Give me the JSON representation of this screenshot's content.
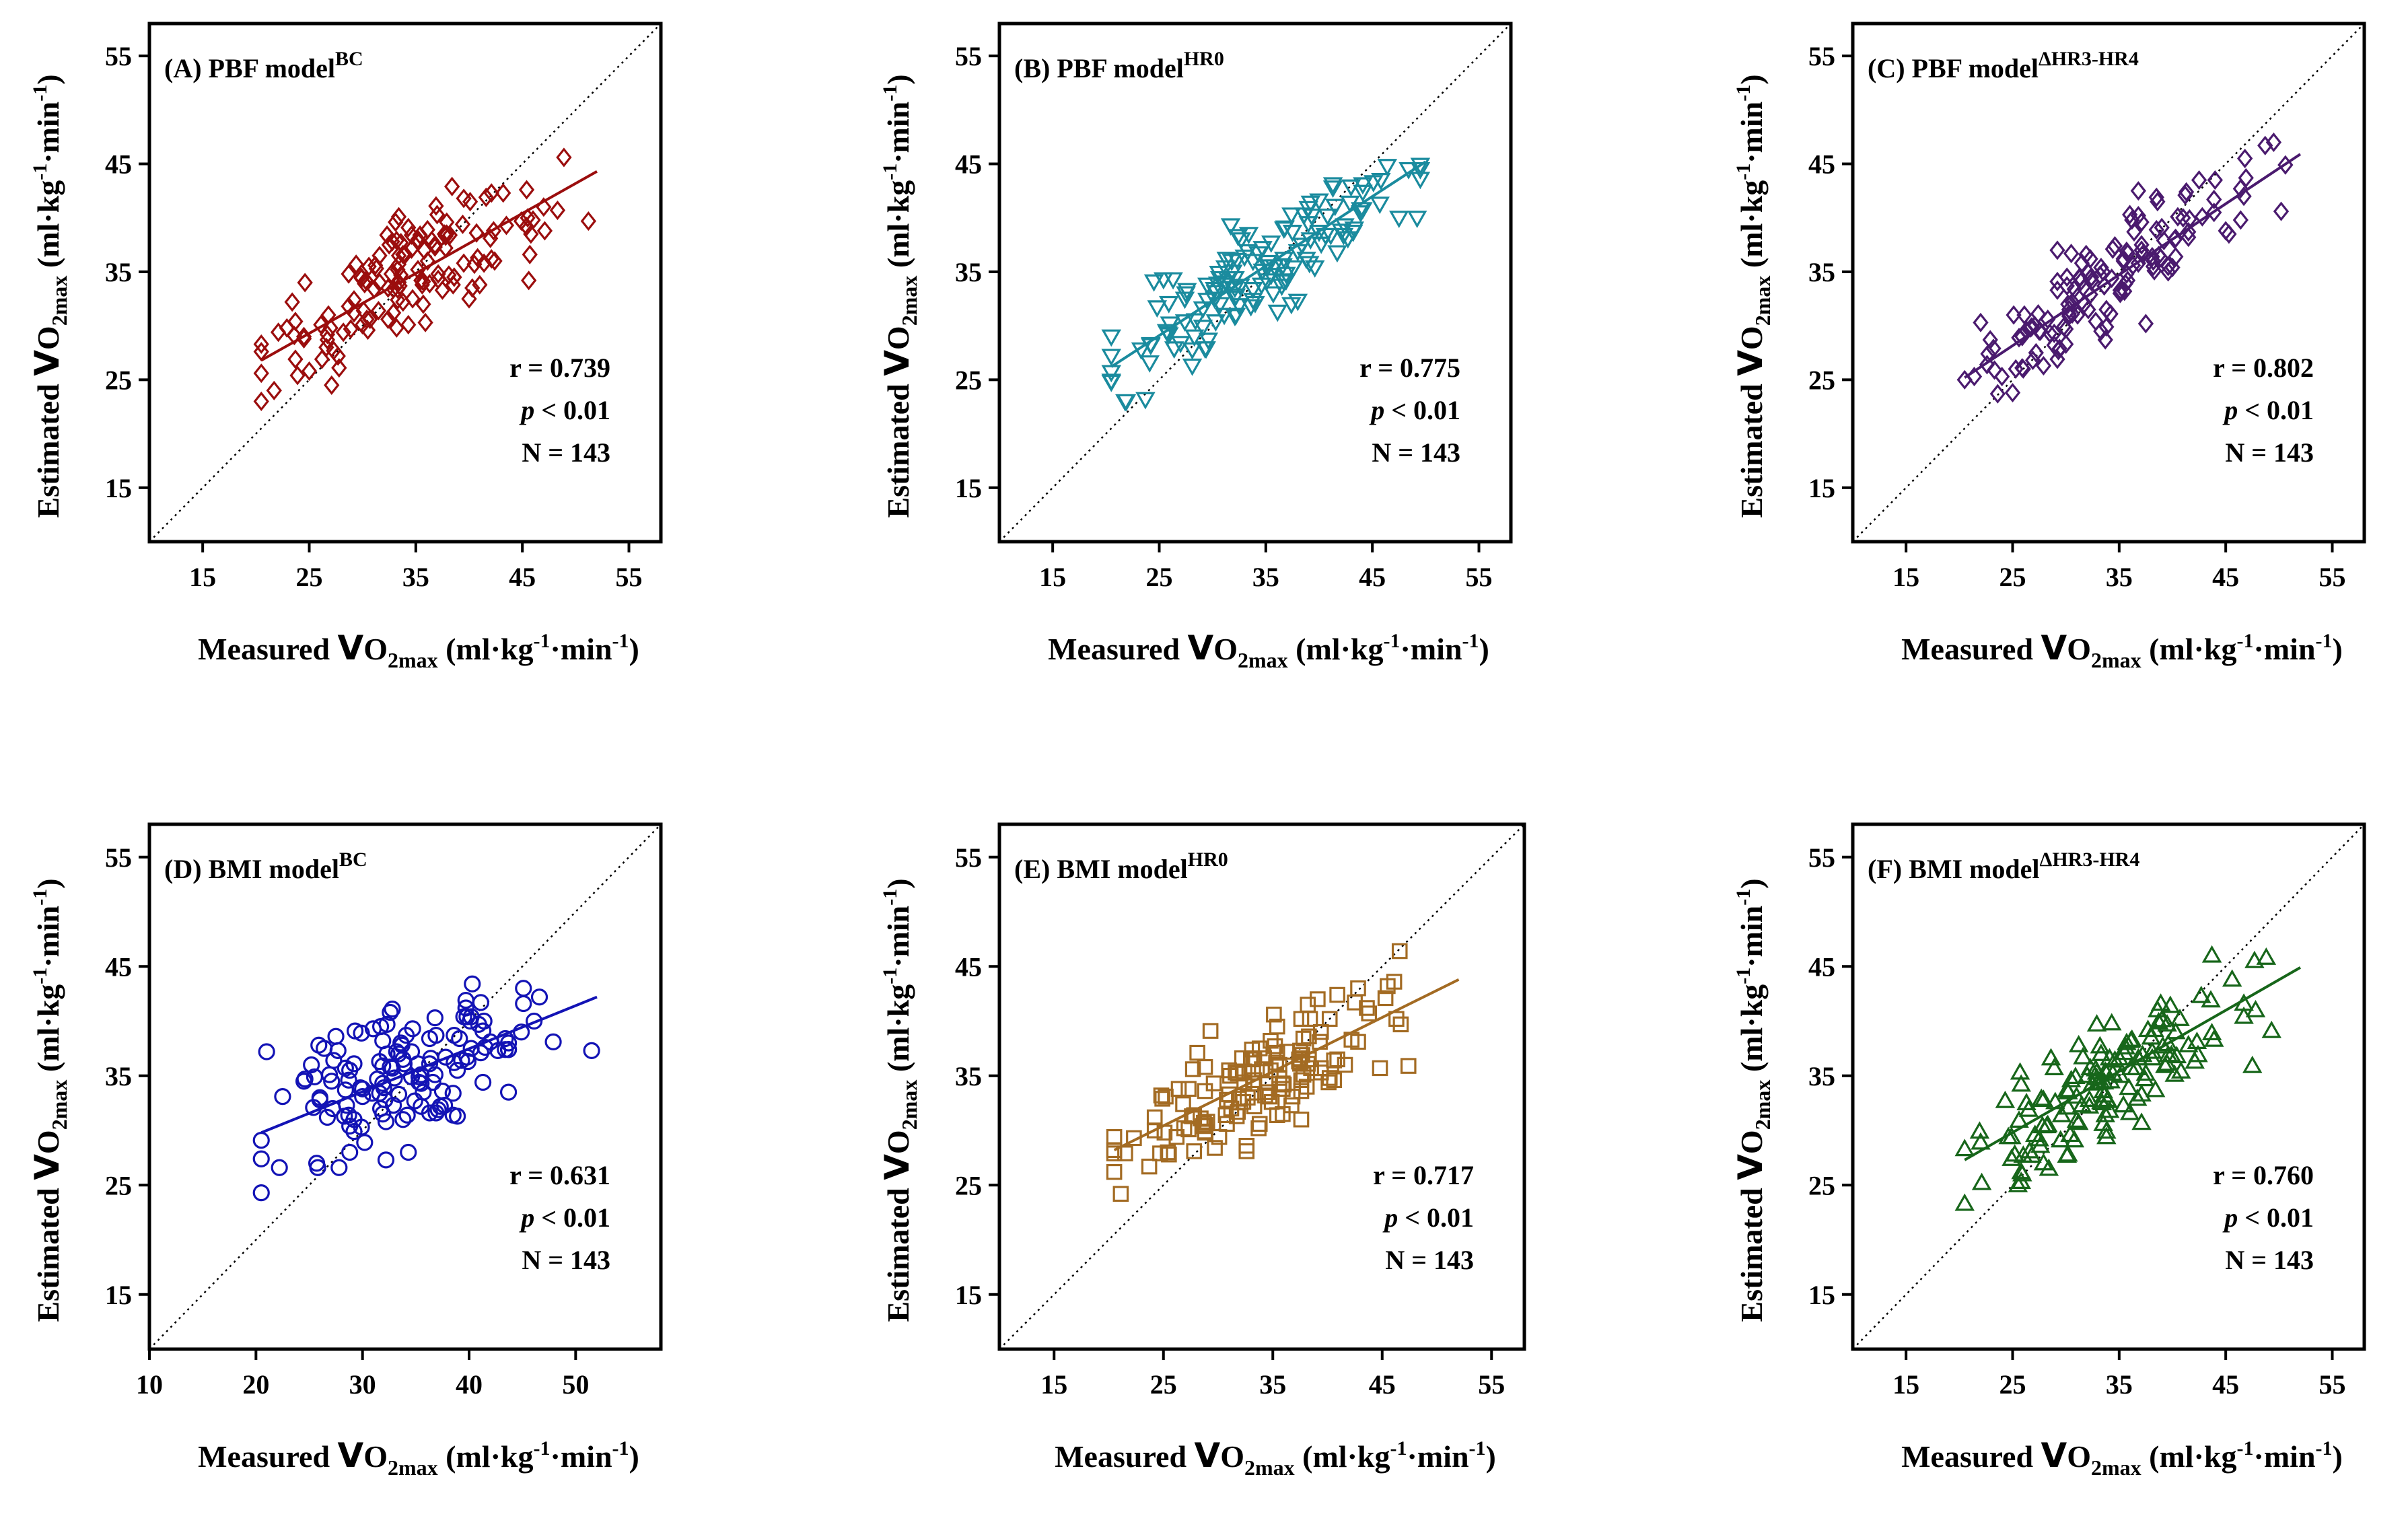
{
  "chart_data": [
    {
      "type": "scatter",
      "panel": "A",
      "title": {
        "main": "(A) PBF model",
        "sup": "BC"
      },
      "color": "#9b0d0d",
      "marker": "diamond",
      "xlabel": {
        "pre": "Measured ",
        "v": "V",
        "sub": "2max",
        "o": "O",
        "unit_pre": "(ml·kg",
        "exp1": "-1",
        "unit_mid": "·min",
        "exp2": "-1",
        "unit_post": ")"
      },
      "ylabel": {
        "pre": "Estimated ",
        "v": "V",
        "o": "O",
        "sub": "2max",
        "unit_pre": "(ml·kg",
        "exp1": "-1",
        "unit_mid": "·min",
        "exp2": "-1",
        "unit_post": ")"
      },
      "xlim": [
        10,
        58
      ],
      "ylim": [
        10,
        58
      ],
      "xticks": [
        15,
        25,
        35,
        45,
        55
      ],
      "yticks": [
        15,
        25,
        35,
        45,
        55
      ],
      "identity_line": true,
      "fit": {
        "x": [
          20.5,
          52
        ],
        "y": [
          26.8,
          44.3
        ]
      },
      "stats": {
        "r": "r = 0.739",
        "p_italic": "p",
        "p_rest": " < 0.01",
        "n": "N = 143"
      },
      "r": 0.739,
      "n": 143,
      "seed": 11
    },
    {
      "type": "scatter",
      "panel": "B",
      "title": {
        "main": "(B) PBF model",
        "sup": "HR0"
      },
      "color": "#1a8b9e",
      "marker": "triangle-down",
      "xlabel": {
        "pre": "Measured ",
        "v": "V",
        "sub": "2max",
        "o": "O",
        "unit_pre": "(ml·kg",
        "exp1": "-1",
        "unit_mid": "·min",
        "exp2": "-1",
        "unit_post": ")"
      },
      "ylabel": {
        "pre": "Estimated ",
        "v": "V",
        "o": "O",
        "sub": "2max",
        "unit_pre": "(ml·kg",
        "exp1": "-1",
        "unit_mid": "·min",
        "exp2": "-1",
        "unit_post": ")"
      },
      "xlim": [
        10,
        58
      ],
      "ylim": [
        10,
        58
      ],
      "xticks": [
        15,
        25,
        35,
        45,
        55
      ],
      "yticks": [
        15,
        25,
        35,
        45,
        55
      ],
      "identity_line": true,
      "fit": {
        "x": [
          20.5,
          50
        ],
        "y": [
          26.2,
          45.2
        ]
      },
      "stats": {
        "r": "r = 0.775",
        "p_italic": "p",
        "p_rest": " < 0.01",
        "n": "N = 143"
      },
      "r": 0.775,
      "n": 143,
      "seed": 23
    },
    {
      "type": "scatter",
      "panel": "C",
      "title": {
        "main": "(C) PBF model",
        "sup": "ΔHR3-HR4"
      },
      "color": "#4a1a6e",
      "marker": "diamond",
      "xlabel": {
        "pre": "Measured ",
        "v": "V",
        "sub": "2max",
        "o": "O",
        "unit_pre": "(ml·kg",
        "exp1": "-1",
        "unit_mid": "·min",
        "exp2": "-1",
        "unit_post": ")"
      },
      "ylabel": {
        "pre": "Estimated ",
        "v": "V",
        "o": "O",
        "sub": "2max",
        "unit_pre": "(ml·kg",
        "exp1": "-1",
        "unit_mid": "·min",
        "exp2": "-1",
        "unit_post": ")"
      },
      "xlim": [
        10,
        58
      ],
      "ylim": [
        10,
        58
      ],
      "xticks": [
        15,
        25,
        35,
        45,
        55
      ],
      "yticks": [
        15,
        25,
        35,
        45,
        55
      ],
      "identity_line": true,
      "fit": {
        "x": [
          20.5,
          52
        ],
        "y": [
          25.2,
          45.9
        ]
      },
      "stats": {
        "r": "r = 0.802",
        "p_italic": "p",
        "p_rest": " < 0.01",
        "n": "N = 143"
      },
      "r": 0.802,
      "n": 143,
      "seed": 37
    },
    {
      "type": "scatter",
      "panel": "D",
      "title": {
        "main": "(D) BMI model",
        "sup": "BC"
      },
      "color": "#1313b5",
      "marker": "circle",
      "xlabel": {
        "pre": "Measured ",
        "v": "V",
        "sub": "2max",
        "o": "O",
        "unit_pre": "(ml·kg",
        "exp1": "-1",
        "unit_mid": "·min",
        "exp2": "-1",
        "unit_post": ")"
      },
      "ylabel": {
        "pre": "Estimated ",
        "v": "V",
        "o": "O",
        "sub": "2max",
        "unit_pre": "(ml·kg",
        "exp1": "-1",
        "unit_mid": "·min",
        "exp2": "-1",
        "unit_post": ")"
      },
      "xlim": [
        10,
        58
      ],
      "ylim": [
        10,
        58
      ],
      "xticks": [
        10,
        20,
        30,
        40,
        50
      ],
      "yticks": [
        15,
        25,
        35,
        45,
        55
      ],
      "identity_line": true,
      "fit": {
        "x": [
          20.5,
          52
        ],
        "y": [
          29.8,
          42.2
        ]
      },
      "stats": {
        "r": "r = 0.631",
        "p_italic": "p",
        "p_rest": " < 0.01",
        "n": "N = 143"
      },
      "r": 0.631,
      "n": 143,
      "seed": 41
    },
    {
      "type": "scatter",
      "panel": "E",
      "title": {
        "main": "(E) BMI model",
        "sup": "HR0"
      },
      "color": "#a36b23",
      "marker": "square",
      "xlabel": {
        "pre": "Measured ",
        "v": "V",
        "sub": "2max",
        "o": "O",
        "unit_pre": "(ml·kg",
        "exp1": "-1",
        "unit_mid": "·min",
        "exp2": "-1",
        "unit_post": ")"
      },
      "ylabel": {
        "pre": "Estimated ",
        "v": "V",
        "o": "O",
        "sub": "2max",
        "unit_pre": "(ml·kg",
        "exp1": "-1",
        "unit_mid": "·min",
        "exp2": "-1",
        "unit_post": ")"
      },
      "xlim": [
        10,
        58
      ],
      "ylim": [
        10,
        58
      ],
      "xticks": [
        15,
        25,
        35,
        45,
        55
      ],
      "yticks": [
        15,
        25,
        35,
        45,
        55
      ],
      "identity_line": true,
      "fit": {
        "x": [
          20.5,
          52
        ],
        "y": [
          28.2,
          43.8
        ]
      },
      "stats": {
        "r": "r = 0.717",
        "p_italic": "p",
        "p_rest": " < 0.01",
        "n": "N = 143"
      },
      "r": 0.717,
      "n": 143,
      "seed": 53
    },
    {
      "type": "scatter",
      "panel": "F",
      "title": {
        "main": "(F) BMI model",
        "sup": "ΔHR3-HR4"
      },
      "color": "#17661a",
      "marker": "triangle-up",
      "xlabel": {
        "pre": "Measured ",
        "v": "V",
        "sub": "2max",
        "o": "O",
        "unit_pre": "(ml·kg",
        "exp1": "-1",
        "unit_mid": "·min",
        "exp2": "-1",
        "unit_post": ")"
      },
      "ylabel": {
        "pre": "Estimated ",
        "v": "V",
        "o": "O",
        "sub": "2max",
        "unit_pre": "(ml·kg",
        "exp1": "-1",
        "unit_mid": "·min",
        "exp2": "-1",
        "unit_post": ")"
      },
      "xlim": [
        10,
        58
      ],
      "ylim": [
        10,
        58
      ],
      "xticks": [
        15,
        25,
        35,
        45,
        55
      ],
      "yticks": [
        15,
        25,
        35,
        45,
        55
      ],
      "identity_line": true,
      "fit": {
        "x": [
          20.5,
          52
        ],
        "y": [
          27.3,
          44.9
        ]
      },
      "stats": {
        "r": "r = 0.760",
        "p_italic": "p",
        "p_rest": " < 0.01",
        "n": "N = 143"
      },
      "r": 0.76,
      "n": 143,
      "seed": 67
    }
  ]
}
